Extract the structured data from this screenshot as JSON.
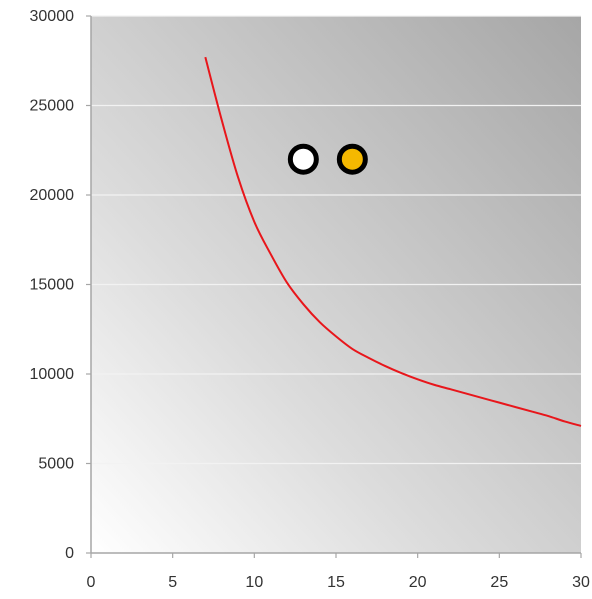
{
  "chart_data": {
    "type": "scatter",
    "title": "",
    "xlabel": "",
    "ylabel": "",
    "xlim": [
      0,
      30
    ],
    "ylim": [
      0,
      30000
    ],
    "x_ticks": [
      0,
      5,
      10,
      15,
      20,
      25,
      30
    ],
    "y_ticks": [
      0,
      5000,
      10000,
      15000,
      20000,
      25000,
      30000
    ],
    "x_tick_labels": [
      "0",
      "5",
      "10",
      "15",
      "20",
      "25",
      "30"
    ],
    "y_tick_labels": [
      "0",
      "5000",
      "10000",
      "15000",
      "20000",
      "25000",
      "30000"
    ],
    "grid": "horizontal",
    "legend": "none",
    "series": [
      {
        "type": "line",
        "color": "#e8161b",
        "points": [
          [
            7,
            27700
          ],
          [
            8,
            24200
          ],
          [
            9,
            21000
          ],
          [
            10,
            18500
          ],
          [
            11,
            16700
          ],
          [
            12,
            15100
          ],
          [
            13,
            13900
          ],
          [
            14,
            12900
          ],
          [
            15,
            12100
          ],
          [
            16,
            11400
          ],
          [
            17,
            10900
          ],
          [
            18,
            10450
          ],
          [
            19,
            10050
          ],
          [
            20,
            9700
          ],
          [
            21,
            9400
          ],
          [
            22,
            9150
          ],
          [
            23,
            8900
          ],
          [
            24,
            8650
          ],
          [
            25,
            8400
          ],
          [
            26,
            8150
          ],
          [
            27,
            7900
          ],
          [
            28,
            7650
          ],
          [
            29,
            7350
          ],
          [
            30,
            7100
          ]
        ]
      },
      {
        "type": "scatter",
        "marker": "circle",
        "points": [
          {
            "x": 13,
            "y": 22000,
            "fill": "#ffffff",
            "stroke": "#000000"
          },
          {
            "x": 16,
            "y": 22000,
            "fill": "#f5b800",
            "stroke": "#000000"
          }
        ]
      }
    ],
    "colors": {
      "plot_bg_light": "#ffffff",
      "plot_bg_dark": "#a6a6a6",
      "gridline": "#f2f2f2",
      "axis": "#a6a6a6",
      "curve": "#e8161b"
    }
  }
}
